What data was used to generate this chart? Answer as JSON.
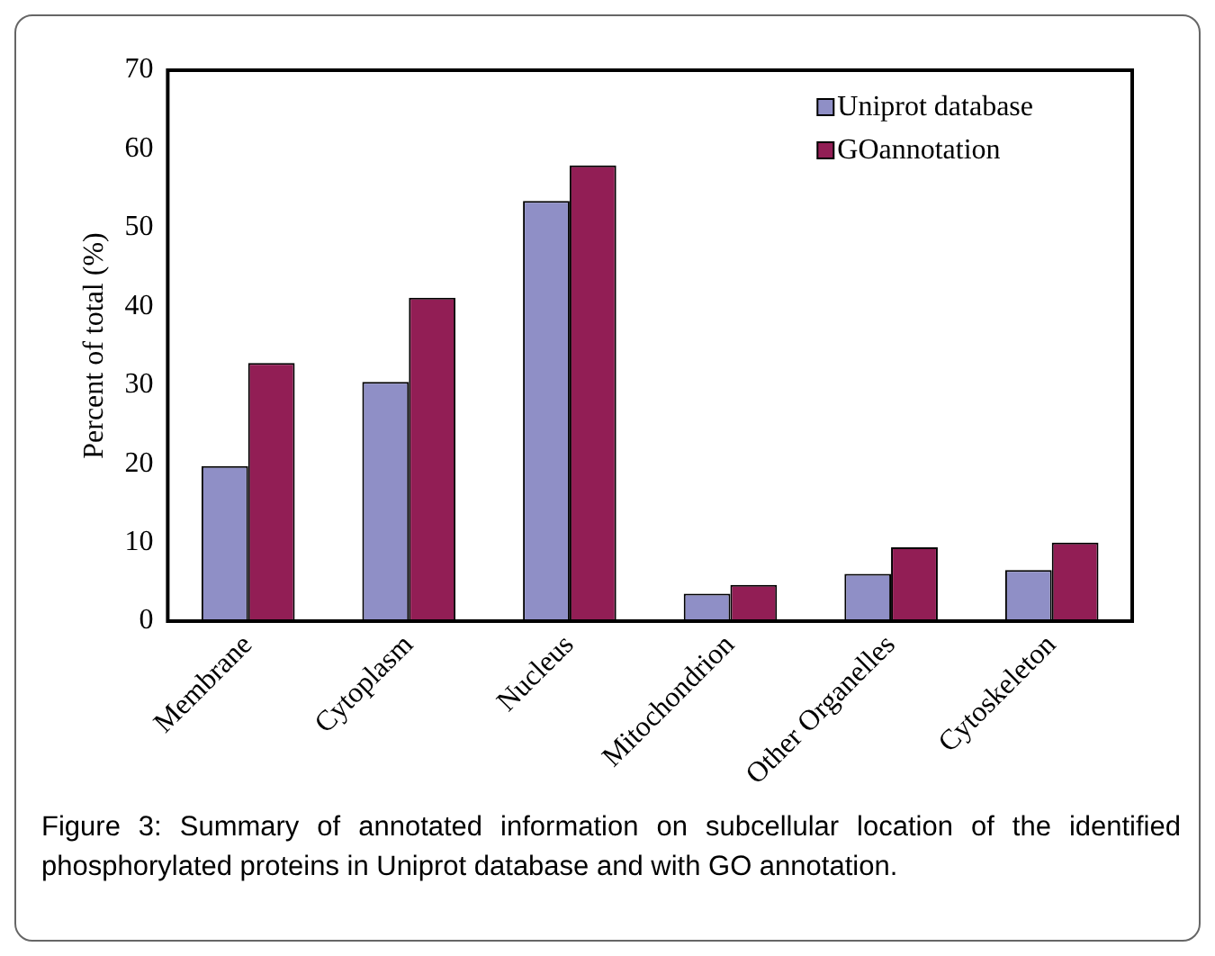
{
  "chart_data": {
    "type": "bar",
    "ylabel": "Percent of total (%)",
    "categories": [
      "Membrane",
      "Cytoplasm",
      "Nucleus",
      "Mitochondrion",
      "Other Organelles",
      "Cytoskeleton"
    ],
    "series": [
      {
        "name": "Uniprot database",
        "color": "#8f8fc6",
        "values": [
          19.7,
          30.4,
          53.4,
          3.5,
          6.0,
          6.5
        ]
      },
      {
        "name": "GOannotation",
        "color": "#921e55",
        "values": [
          32.8,
          41.1,
          57.9,
          4.6,
          9.4,
          10.0
        ]
      }
    ],
    "ylim": [
      0,
      70
    ],
    "yticks": [
      0,
      10,
      20,
      30,
      40,
      50,
      60,
      70
    ],
    "grid": false,
    "legend": "top right",
    "annotations": [
      "Figure 3: Summary of annotated information on subcellular location of the identified phosphorylated proteins in Uniprot database and with GO annotation."
    ]
  }
}
